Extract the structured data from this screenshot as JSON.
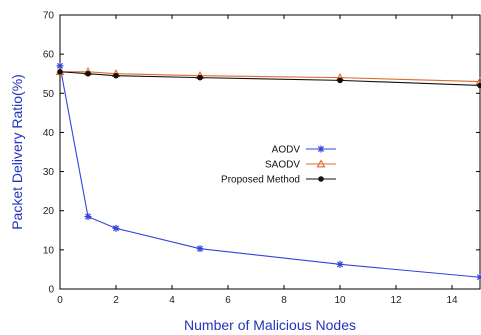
{
  "chart_data": {
    "type": "line",
    "xlabel": "Number of Malicious Nodes",
    "ylabel": "Packet Delivery Ratio(%)",
    "xlim": [
      0,
      15
    ],
    "ylim": [
      0,
      70
    ],
    "xticks": [
      0,
      2,
      4,
      6,
      8,
      10,
      12,
      14
    ],
    "yticks": [
      0,
      10,
      20,
      30,
      40,
      50,
      60,
      70
    ],
    "grid": false,
    "legend_position": "center-right",
    "series": [
      {
        "name": "AODV",
        "color": "#3344dd",
        "marker": "star",
        "x": [
          0,
          1,
          2,
          5,
          10,
          15
        ],
        "y": [
          57,
          18.5,
          15.5,
          10.3,
          6.3,
          3
        ]
      },
      {
        "name": "SAODV",
        "color": "#e06a30",
        "marker": "triangle",
        "x": [
          0,
          1,
          2,
          5,
          10,
          15
        ],
        "y": [
          55.5,
          55.5,
          55,
          54.5,
          54,
          53
        ]
      },
      {
        "name": "Proposed Method",
        "color": "#111111",
        "marker": "circle",
        "x": [
          0,
          1,
          2,
          5,
          10,
          15
        ],
        "y": [
          55.5,
          55,
          54.5,
          54,
          53.3,
          52
        ]
      }
    ]
  }
}
